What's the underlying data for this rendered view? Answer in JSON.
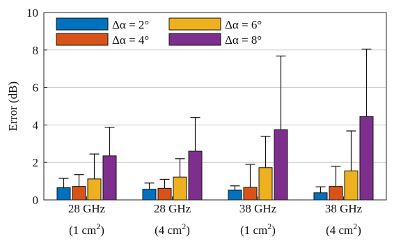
{
  "chart_data": {
    "type": "bar",
    "title": "",
    "xlabel": "",
    "ylabel": "Error (dB)",
    "ylim": [
      0,
      10
    ],
    "yticks": [
      0,
      2,
      4,
      6,
      8,
      10
    ],
    "grid": "horizontal",
    "legend_position": "top-left",
    "categories": [
      {
        "line1": "28 GHz",
        "line2_base": "(1 cm",
        "line2_sup": "2",
        "line2_end": ")"
      },
      {
        "line1": "28 GHz",
        "line2_base": "(4 cm",
        "line2_sup": "2",
        "line2_end": ")"
      },
      {
        "line1": "38 GHz",
        "line2_base": "(1 cm",
        "line2_sup": "2",
        "line2_end": ")"
      },
      {
        "line1": "38 GHz",
        "line2_base": "(4 cm",
        "line2_sup": "2",
        "line2_end": ")"
      }
    ],
    "series": [
      {
        "name": "Δα = 2°",
        "color": "#0072BD",
        "values": [
          0.65,
          0.57,
          0.52,
          0.38
        ],
        "error_upper": [
          1.15,
          0.9,
          0.75,
          0.7
        ]
      },
      {
        "name": "Δα = 4°",
        "color": "#D95319",
        "values": [
          0.72,
          0.62,
          0.67,
          0.72
        ],
        "error_upper": [
          1.35,
          1.1,
          1.9,
          1.8
        ]
      },
      {
        "name": "Δα = 6°",
        "color": "#EDB120",
        "values": [
          1.12,
          1.22,
          1.72,
          1.55
        ],
        "error_upper": [
          2.45,
          2.2,
          3.4,
          3.68
        ]
      },
      {
        "name": "Δα = 8°",
        "color": "#7E2F8E",
        "values": [
          2.35,
          2.6,
          3.75,
          4.45
        ],
        "error_upper": [
          3.88,
          4.4,
          7.68,
          8.05
        ]
      }
    ]
  }
}
